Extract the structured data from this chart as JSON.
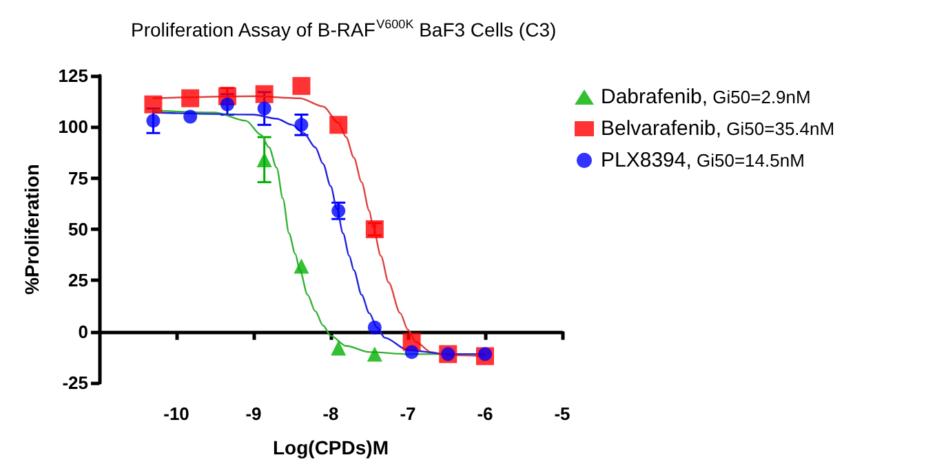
{
  "chart_data": {
    "type": "scatter",
    "title": "Proliferation Assay of B-RAF$^{V600K}$ BaF3 Cells (C3)",
    "xlabel": "Log(CPDs)M",
    "ylabel": "%Proliferation",
    "x": [
      -10.3,
      -9.82,
      -9.34,
      -8.86,
      -8.38,
      -7.9,
      -7.43,
      -6.95,
      -6.48,
      -6.0
    ],
    "xlim": [
      -11,
      -5
    ],
    "xticks": [
      -10,
      -9,
      -8,
      -7,
      -6,
      -5
    ],
    "ylim": [
      -25,
      125
    ],
    "yticks": [
      -25,
      0,
      25,
      50,
      75,
      100,
      125
    ],
    "legend": "right",
    "series": [
      {
        "name": "Dabrafenib, Gi50=2.9nM",
        "color": "#00b000",
        "marker": "triangle",
        "values": [
          null,
          null,
          null,
          84,
          32,
          -8,
          -11,
          null,
          null,
          null
        ],
        "errors": [
          null,
          null,
          null,
          11,
          null,
          null,
          null,
          null,
          null,
          null
        ]
      },
      {
        "name": "Belvarafenib, Gi50=35.4nM",
        "color": "#ff0000",
        "marker": "square",
        "values": [
          111,
          114,
          115,
          116,
          120,
          101,
          50,
          -5,
          -11,
          -12
        ],
        "errors": [
          null,
          null,
          4,
          null,
          null,
          null,
          3,
          null,
          null,
          null
        ]
      },
      {
        "name": "PLX8394, Gi50=14.5nM",
        "color": "#0000ff",
        "marker": "circle",
        "values": [
          103,
          105,
          111,
          109,
          101,
          59,
          2,
          -10,
          -11,
          -11
        ],
        "errors": [
          6,
          null,
          5,
          8,
          5,
          4,
          null,
          null,
          null,
          null
        ]
      },
      {
        "type": "line",
        "color": "#33b033",
        "marker": "none",
        "line_style": "solid",
        "x": [
          -10.3,
          -9.5,
          -9.1,
          -8.9,
          -8.8,
          -8.7,
          -8.62,
          -8.54,
          -8.46,
          -8.4,
          -8.3,
          -8.2,
          -8.1,
          -8.0,
          -7.8,
          -7.5,
          -7.0,
          -6.0
        ],
        "values": [
          108,
          107,
          103,
          96,
          90,
          80,
          65,
          48,
          38,
          30,
          18,
          10,
          3,
          -2,
          -7,
          -10,
          -11,
          -11
        ]
      },
      {
        "type": "line",
        "color": "#e04040",
        "marker": "none",
        "line_style": "solid",
        "x": [
          -10.3,
          -9.0,
          -8.4,
          -8.1,
          -7.9,
          -7.8,
          -7.7,
          -7.6,
          -7.5,
          -7.45,
          -7.35,
          -7.25,
          -7.1,
          -7.0,
          -6.9,
          -6.7,
          -6.5,
          -6.0
        ],
        "values": [
          114,
          115,
          114,
          110,
          102,
          95,
          85,
          73,
          59,
          51,
          37,
          24,
          9,
          1,
          -5,
          -10,
          -11.5,
          -12
        ]
      },
      {
        "type": "line",
        "color": "#2020e0",
        "marker": "none",
        "line_style": "solid",
        "x": [
          -10.3,
          -9.0,
          -8.7,
          -8.5,
          -8.35,
          -8.2,
          -8.1,
          -8.0,
          -7.92,
          -7.84,
          -7.76,
          -7.7,
          -7.6,
          -7.5,
          -7.4,
          -7.3,
          -7.0,
          -6.5,
          -6.0
        ],
        "values": [
          107,
          106,
          104,
          101,
          97,
          90,
          82,
          71,
          60,
          48,
          37,
          30,
          18,
          9,
          2,
          -3,
          -9,
          -11,
          -11
        ]
      }
    ]
  }
}
